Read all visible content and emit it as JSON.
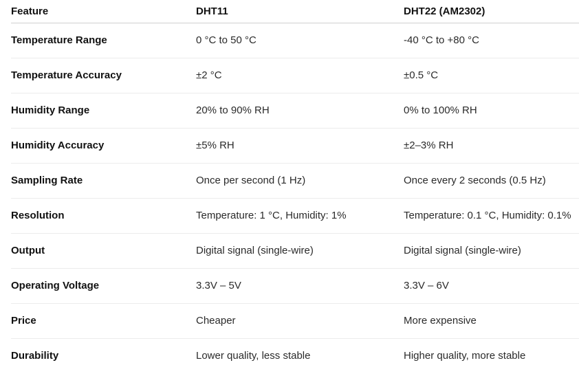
{
  "table": {
    "headers": [
      "Feature",
      "DHT11",
      "DHT22 (AM2302)"
    ],
    "rows": [
      [
        "Temperature Range",
        "0 °C to 50 °C",
        "-40 °C to +80 °C"
      ],
      [
        "Temperature Accuracy",
        "±2 °C",
        "±0.5 °C"
      ],
      [
        "Humidity Range",
        "20% to 90% RH",
        "0% to 100% RH"
      ],
      [
        "Humidity Accuracy",
        "±5% RH",
        "±2–3% RH"
      ],
      [
        "Sampling Rate",
        "Once per second (1 Hz)",
        "Once every 2 seconds (0.5 Hz)"
      ],
      [
        "Resolution",
        "Temperature: 1 °C, Humidity: 1%",
        "Temperature: 0.1 °C, Humidity: 0.1%"
      ],
      [
        "Output",
        "Digital signal (single-wire)",
        "Digital signal (single-wire)"
      ],
      [
        "Operating Voltage",
        "3.3V – 5V",
        "3.3V – 6V"
      ],
      [
        "Price",
        "Cheaper",
        "More expensive"
      ],
      [
        "Durability",
        "Lower quality, less stable",
        "Higher quality, more stable"
      ]
    ]
  }
}
